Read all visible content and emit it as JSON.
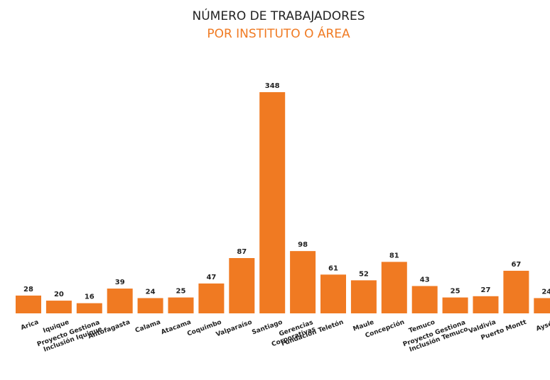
{
  "chart_data": {
    "type": "bar",
    "title": "NÚMERO DE TRABAJADORES",
    "subtitle": "POR INSTITUTO O ÁREA",
    "categories": [
      "Arica",
      "Iquique",
      "Proyecto Gestiona\nInclusión Iquique",
      "Antofagasta",
      "Calama",
      "Atacama",
      "Coquimbo",
      "Valparaíso",
      "Santiago",
      "Gerencias\nCorporativas",
      "Fundación Teletón",
      "Maule",
      "Concepción",
      "Temuco",
      "Proyecto Gestiona\nInclusión Temuco",
      "Valdivia",
      "Puerto Montt",
      "Aysén"
    ],
    "values": [
      28,
      20,
      16,
      39,
      24,
      25,
      47,
      87,
      348,
      98,
      61,
      52,
      81,
      43,
      25,
      27,
      67,
      24
    ],
    "color": "#f07a22",
    "ylim": [
      0,
      348
    ]
  }
}
